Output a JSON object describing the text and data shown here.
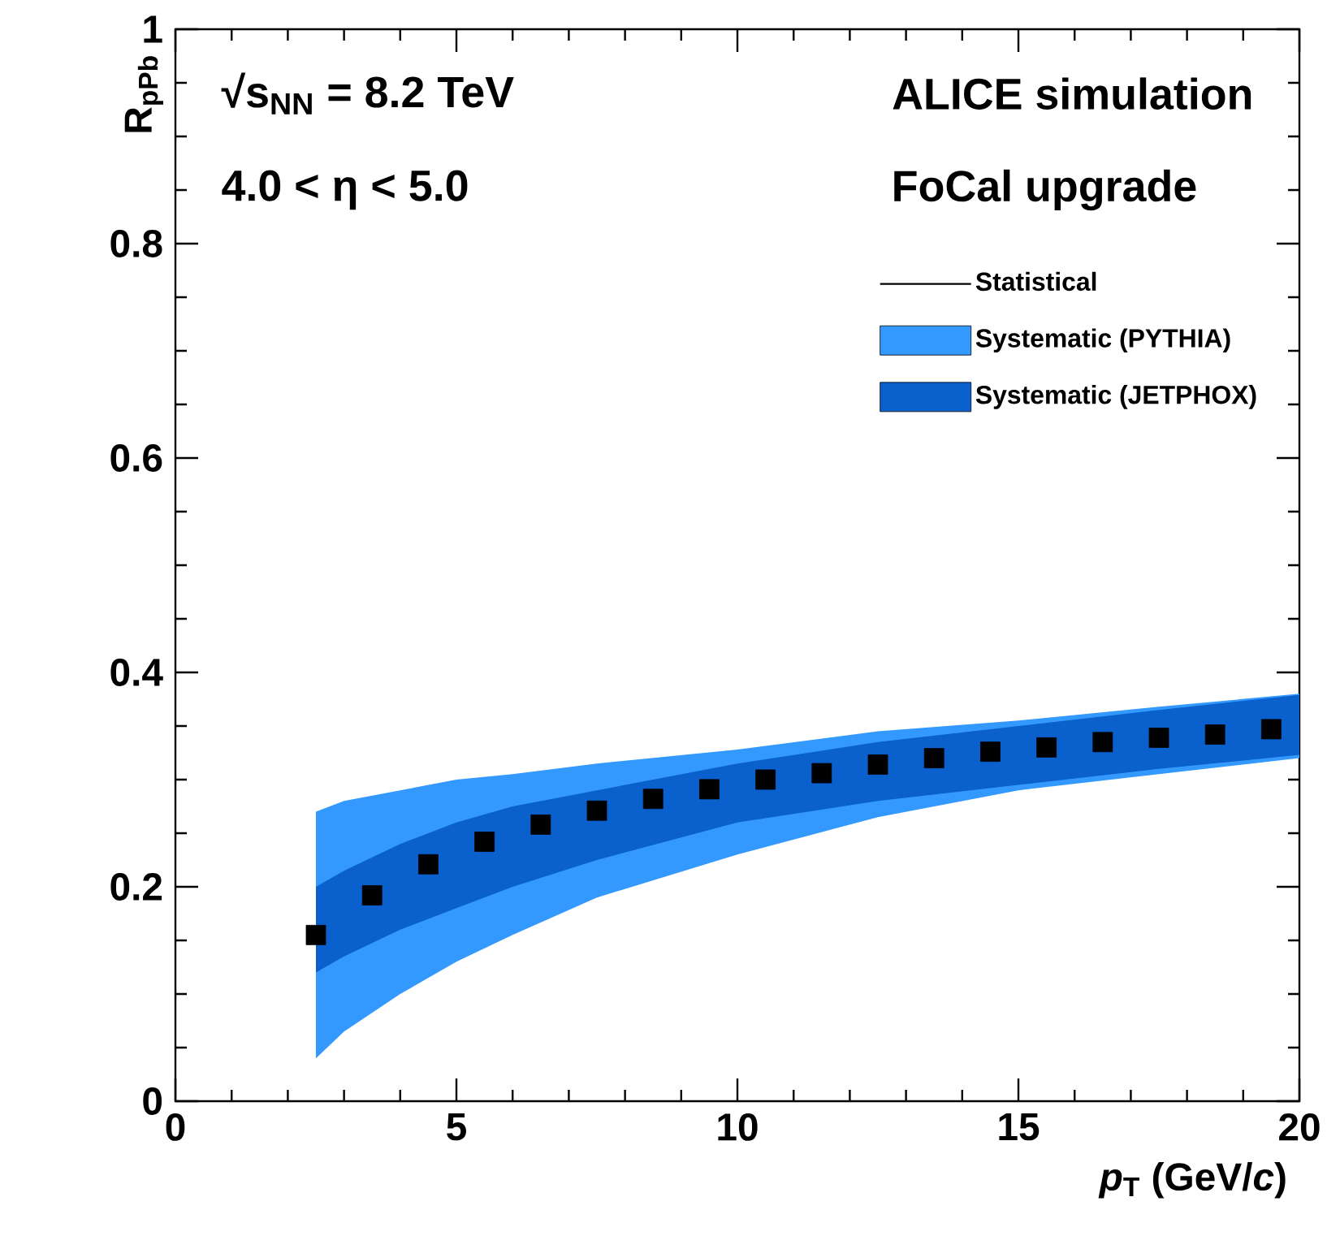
{
  "chart_data": {
    "type": "scatter",
    "xlabel": "*p*$_{T}$ (GeV/*c*)",
    "ylabel": "R$_{pPb}$",
    "annotations": [
      "√s$_{NN}$ = 8.2 TeV",
      "4.0 < η < 5.0",
      "ALICE simulation",
      "FoCal upgrade"
    ],
    "xlim": [
      0,
      20
    ],
    "ylim": [
      0,
      1
    ],
    "xticks": [
      0,
      5,
      10,
      15,
      20
    ],
    "yticks": [
      0,
      0.2,
      0.4,
      0.6,
      0.8,
      1
    ],
    "legend": "top right",
    "marker": "square",
    "grid": false,
    "series": [
      {
        "name": "Statistical",
        "color": "#000000",
        "x": [
          2.5,
          3.5,
          4.5,
          5.5,
          6.5,
          7.5,
          8.5,
          9.5,
          10.5,
          11.5,
          12.5,
          13.5,
          14.5,
          15.5,
          16.5,
          17.5,
          18.5,
          19.5
        ],
        "values": [
          0.155,
          0.192,
          0.221,
          0.242,
          0.258,
          0.271,
          0.282,
          0.291,
          0.3,
          0.306,
          0.314,
          0.32,
          0.326,
          0.33,
          0.335,
          0.339,
          0.342,
          0.347
        ]
      },
      {
        "name": "Systematic (PYTHIA)",
        "type": "area",
        "color": "#3399ff",
        "x": [
          2.5,
          3,
          4,
          5,
          6,
          7.5,
          10,
          12.5,
          15,
          17.5,
          20
        ],
        "values": [
          null,
          null,
          null,
          null,
          null,
          null,
          null,
          null,
          null,
          null,
          null
        ],
        "lower": [
          0.04,
          0.065,
          0.1,
          0.13,
          0.155,
          0.19,
          0.23,
          0.265,
          0.29,
          0.305,
          0.32
        ],
        "upper": [
          0.27,
          0.28,
          0.29,
          0.3,
          0.305,
          0.315,
          0.328,
          0.345,
          0.355,
          0.368,
          0.38
        ]
      },
      {
        "name": "Systematic (JETPHOX)",
        "type": "area",
        "color": "#0a60cc",
        "x": [
          2.5,
          3,
          4,
          5,
          6,
          7.5,
          10,
          12.5,
          15,
          17.5,
          20
        ],
        "values": [
          null,
          null,
          null,
          null,
          null,
          null,
          null,
          null,
          null,
          null,
          null
        ],
        "lower": [
          0.12,
          0.135,
          0.16,
          0.18,
          0.2,
          0.225,
          0.26,
          0.28,
          0.295,
          0.31,
          0.323
        ],
        "upper": [
          0.2,
          0.215,
          0.24,
          0.26,
          0.275,
          0.29,
          0.315,
          0.335,
          0.35,
          0.365,
          0.379
        ]
      }
    ]
  }
}
